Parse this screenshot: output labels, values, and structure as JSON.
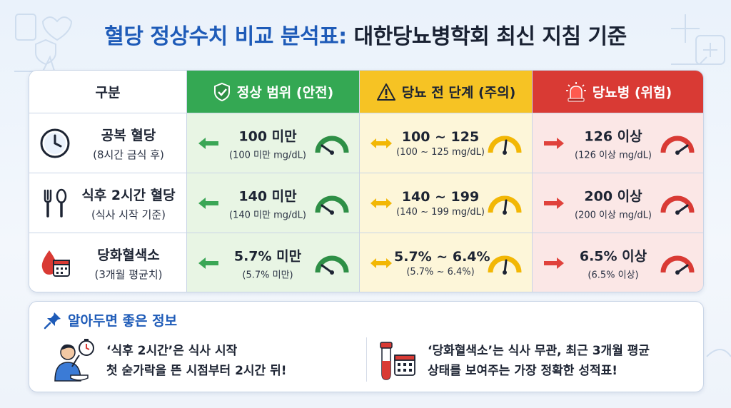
{
  "title": {
    "part1": "혈당 정상수치 비교 분석표:",
    "part2": " 대한당뇨병학회 최신 지침 기준"
  },
  "colors": {
    "normal": "#34a853",
    "prediabetes": "#f6c324",
    "diabetes": "#d93a34",
    "title_blue": "#1e5bb8"
  },
  "table": {
    "headers": {
      "label": "구분",
      "normal": "정상 범위 (안전)",
      "prediabetes": "당뇨 전 단계 (주의)",
      "diabetes": "당뇨병 (위험)"
    },
    "rows": [
      {
        "icon": "clock-icon",
        "label": "공복 혈당",
        "sublabel": "(8시간 금식 후)",
        "normal": {
          "main": "100 미만",
          "sub": "(100 미만 mg/dL)"
        },
        "prediabetes": {
          "main": "100 ~ 125",
          "sub": "(100 ~ 125 mg/dL)"
        },
        "diabetes": {
          "main": "126 이상",
          "sub": "(126 이상 mg/dL)"
        }
      },
      {
        "icon": "fork-spoon-icon",
        "label": "식후 2시간 혈당",
        "sublabel": "(식사 시작 기준)",
        "normal": {
          "main": "140 미만",
          "sub": "(140 미만 mg/dL)"
        },
        "prediabetes": {
          "main": "140 ~ 199",
          "sub": "(140 ~ 199 mg/dL)"
        },
        "diabetes": {
          "main": "200 이상",
          "sub": "(200 이상 mg/dL)"
        }
      },
      {
        "icon": "blood-drop-calendar-icon",
        "label": "당화혈색소",
        "sublabel": "(3개월 평균치)",
        "normal": {
          "main": "5.7% 미만",
          "sub": "(5.7% 미만)"
        },
        "prediabetes": {
          "main": "5.7% ~ 6.4%",
          "sub": "(5.7% ~ 6.4%)"
        },
        "diabetes": {
          "main": "6.5% 이상",
          "sub": "(6.5% 이상)"
        }
      }
    ]
  },
  "info": {
    "title": "알아두면 좋은 정보",
    "items": [
      {
        "icon": "person-eating-timer-icon",
        "line1": "‘식후 2시간’은 식사 시작",
        "line2": "첫 숟가락을 뜬 시점부터 2시간 뒤!"
      },
      {
        "icon": "blood-tube-calendar-icon",
        "line1": "‘당화혈색소’는 식사 무관, 최근 3개월 평균",
        "line2": "상태를 보여주는 가장 정확한 성적표!"
      }
    ]
  }
}
